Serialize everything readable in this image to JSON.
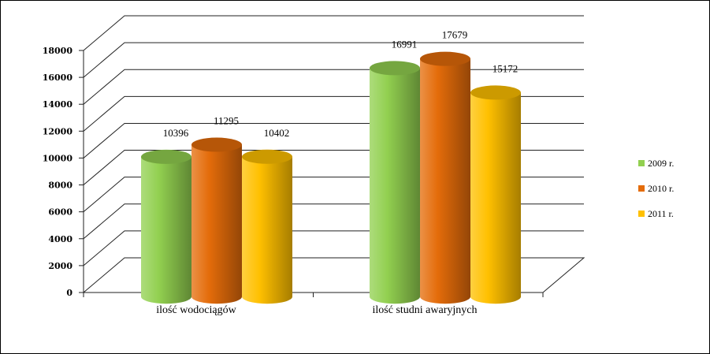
{
  "chart_data": {
    "type": "bar",
    "title": "",
    "xlabel": "",
    "ylabel": "",
    "categories": [
      "ilość wodociągów",
      "ilość studni awaryjnych"
    ],
    "series": [
      {
        "name": "2009 r.",
        "values": [
          10396,
          16991
        ],
        "labels": [
          "10396",
          "16991"
        ],
        "color": "#92D050"
      },
      {
        "name": "2010 r.",
        "values": [
          11295,
          17679
        ],
        "labels": [
          "11295",
          "17679"
        ],
        "color": "#E46C0A"
      },
      {
        "name": "2011 r.",
        "values": [
          10402,
          15172
        ],
        "labels": [
          "10402",
          "15172"
        ],
        "color": "#FFC000"
      }
    ],
    "ylim": [
      0,
      18000
    ],
    "yticks": [
      "0",
      "2000",
      "4000",
      "6000",
      "8000",
      "10000",
      "12000",
      "14000",
      "16000",
      "18000"
    ],
    "grid": true,
    "legend_position": "right"
  }
}
